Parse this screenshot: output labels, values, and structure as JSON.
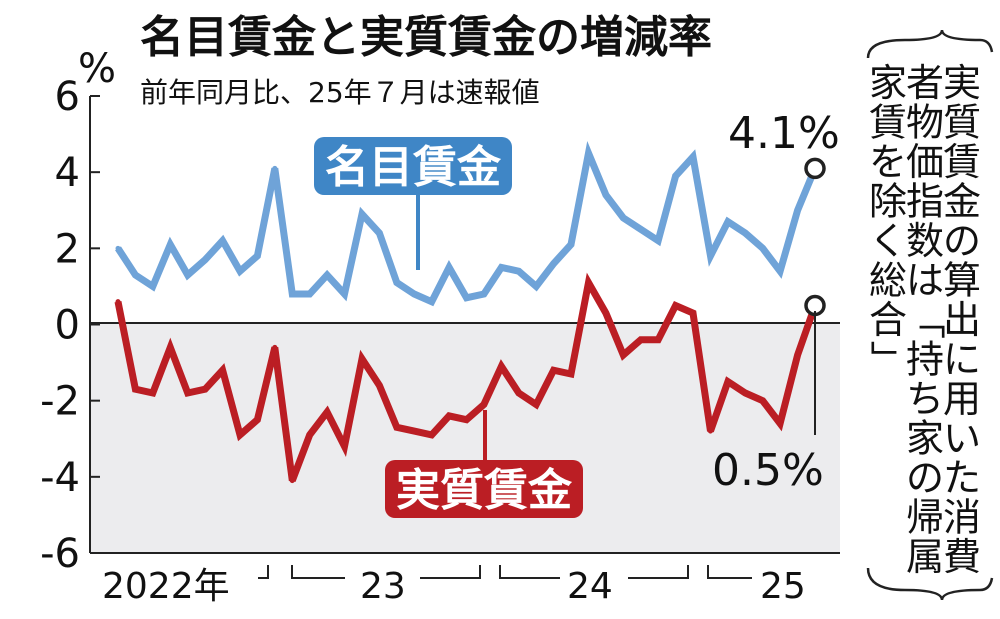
{
  "chart_data": {
    "type": "line",
    "title": "名目賃金と実質賃金の増減率",
    "subtitle": "前年同月比、25年７月は速報値",
    "ylabel": "%",
    "ylim": [
      -6,
      6
    ],
    "yticks": [
      6,
      4,
      2,
      0,
      -2,
      -4,
      -6
    ],
    "x_year_labels": [
      "2022年",
      "23",
      "24",
      "25"
    ],
    "series": [
      {
        "name": "名目賃金",
        "color": "#6fa3d8",
        "badge_color": "#3f86c6",
        "values": [
          2.0,
          1.3,
          1.0,
          2.1,
          1.3,
          1.7,
          2.2,
          1.4,
          1.8,
          4.1,
          0.8,
          0.8,
          1.3,
          0.8,
          2.9,
          2.4,
          1.1,
          0.8,
          0.6,
          1.5,
          0.7,
          0.8,
          1.5,
          1.4,
          1.0,
          1.6,
          2.1,
          4.5,
          3.4,
          2.8,
          2.5,
          2.2,
          3.9,
          4.4,
          1.8,
          2.7,
          2.4,
          2.0,
          1.4,
          3.0,
          4.1
        ]
      },
      {
        "name": "実質賃金",
        "color": "#bb1e24",
        "badge_color": "#bb1e24",
        "values": [
          0.6,
          -1.7,
          -1.8,
          -0.6,
          -1.8,
          -1.7,
          -1.2,
          -2.9,
          -2.5,
          -0.6,
          -4.1,
          -2.9,
          -2.3,
          -3.2,
          -0.9,
          -1.6,
          -2.7,
          -2.8,
          -2.9,
          -2.4,
          -2.5,
          -2.1,
          -1.1,
          -1.8,
          -2.1,
          -1.2,
          -1.3,
          1.1,
          0.3,
          -0.8,
          -0.4,
          -0.4,
          0.5,
          0.3,
          -2.8,
          -1.5,
          -1.8,
          -2.0,
          -2.6,
          -0.8,
          0.5
        ]
      }
    ],
    "end_labels": [
      "4.1%",
      "0.5%"
    ],
    "shaded_region": "below 0",
    "grid": false,
    "side_note": [
      "実質賃金の算出に用いた消費",
      "者物価指数は「持ち家の帰属",
      "家賃を除く総合」"
    ]
  }
}
